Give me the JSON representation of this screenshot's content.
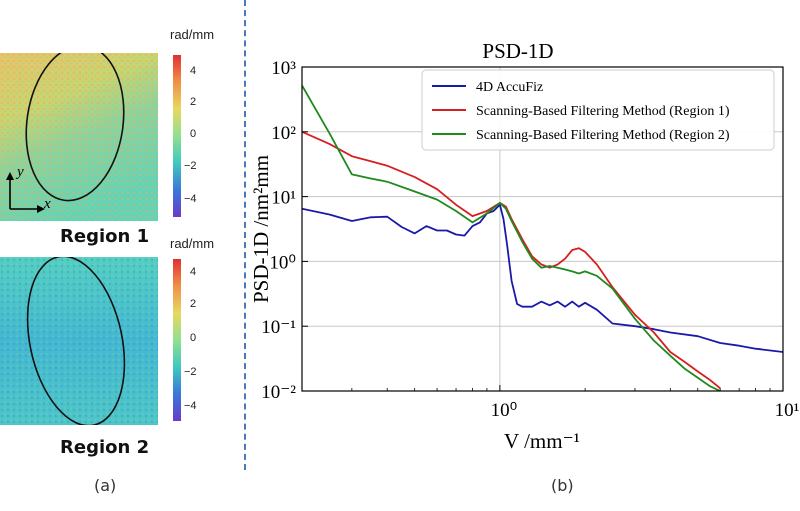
{
  "colors": {
    "divider": "#4a78b8",
    "series_4d": "#1a1aa8",
    "series_region1": "#d62020",
    "series_region2": "#1f8a1f"
  },
  "panel_a": {
    "label": "(a)",
    "regions": [
      {
        "name": "Region 1",
        "colorbar_unit": "rad/mm",
        "colorbar_ticks": [
          "4",
          "2",
          "0",
          "−2",
          "−4"
        ],
        "axis_x": "x",
        "axis_y": "y"
      },
      {
        "name": "Region 2",
        "colorbar_unit": "rad/mm",
        "colorbar_ticks": [
          "4",
          "2",
          "0",
          "−2",
          "−4"
        ]
      }
    ]
  },
  "panel_b": {
    "label": "(b)"
  },
  "chart_data": {
    "type": "line",
    "title": "PSD-1D",
    "xlabel": "V /mm⁻¹",
    "ylabel": "PSD-1D /nm²mm",
    "xscale": "log",
    "yscale": "log",
    "xlim": [
      0.2,
      10
    ],
    "ylim": [
      0.01,
      1000
    ],
    "xticks": [
      1,
      10
    ],
    "xtick_labels": [
      "10⁰",
      "10¹"
    ],
    "yticks": [
      0.01,
      0.1,
      1,
      10,
      100,
      1000
    ],
    "ytick_labels": [
      "10⁻²",
      "10⁻¹",
      "10⁰",
      "10¹",
      "10²",
      "10³"
    ],
    "grid": true,
    "legend_position": "top-right",
    "series": [
      {
        "name": "4D AccuFiz",
        "color": "#1a1aa8",
        "x": [
          0.2,
          0.25,
          0.3,
          0.35,
          0.4,
          0.45,
          0.5,
          0.55,
          0.6,
          0.65,
          0.7,
          0.75,
          0.8,
          0.85,
          0.9,
          0.95,
          1.0,
          1.03,
          1.06,
          1.1,
          1.15,
          1.2,
          1.3,
          1.4,
          1.5,
          1.6,
          1.7,
          1.8,
          1.9,
          2.0,
          2.2,
          2.5,
          3.0,
          3.5,
          4.0,
          5.0,
          6.0,
          7.0,
          8.0,
          10.0
        ],
        "y": [
          6.5,
          5.3,
          4.2,
          4.8,
          4.9,
          3.4,
          2.7,
          3.5,
          3.0,
          3.0,
          2.6,
          2.5,
          3.5,
          4.0,
          5.5,
          6.0,
          7.5,
          4.5,
          1.8,
          0.5,
          0.22,
          0.2,
          0.2,
          0.24,
          0.21,
          0.24,
          0.2,
          0.24,
          0.2,
          0.23,
          0.18,
          0.11,
          0.1,
          0.09,
          0.08,
          0.07,
          0.055,
          0.05,
          0.045,
          0.04
        ]
      },
      {
        "name": "Scanning-Based Filtering Method (Region 1)",
        "color": "#d62020",
        "x": [
          0.2,
          0.25,
          0.3,
          0.35,
          0.4,
          0.5,
          0.6,
          0.7,
          0.8,
          0.9,
          1.0,
          1.05,
          1.1,
          1.2,
          1.3,
          1.4,
          1.5,
          1.6,
          1.7,
          1.8,
          1.9,
          2.0,
          2.2,
          2.5,
          3.0,
          3.5,
          4.0,
          4.5,
          5.0,
          5.5,
          6.0
        ],
        "y": [
          100,
          65,
          42,
          35,
          30,
          20,
          13,
          7.5,
          5.0,
          6.0,
          8.0,
          7.0,
          4.5,
          2.2,
          1.2,
          0.9,
          0.8,
          0.9,
          1.1,
          1.5,
          1.6,
          1.4,
          0.9,
          0.4,
          0.15,
          0.08,
          0.04,
          0.028,
          0.02,
          0.015,
          0.011
        ]
      },
      {
        "name": "Scanning-Based Filtering Method (Region 2)",
        "color": "#1f8a1f",
        "x": [
          0.2,
          0.25,
          0.3,
          0.35,
          0.4,
          0.5,
          0.6,
          0.7,
          0.8,
          0.9,
          1.0,
          1.05,
          1.1,
          1.2,
          1.3,
          1.4,
          1.5,
          1.6,
          1.7,
          1.8,
          1.9,
          2.0,
          2.2,
          2.5,
          3.0,
          3.5,
          4.0,
          4.5,
          5.0,
          5.5,
          6.0
        ],
        "y": [
          520,
          95,
          22,
          19,
          17,
          12,
          9,
          6,
          4,
          5.5,
          8.0,
          6.5,
          4.2,
          2.0,
          1.1,
          0.8,
          0.85,
          0.8,
          0.75,
          0.7,
          0.65,
          0.7,
          0.6,
          0.38,
          0.13,
          0.06,
          0.035,
          0.022,
          0.016,
          0.012,
          0.01
        ]
      }
    ]
  }
}
